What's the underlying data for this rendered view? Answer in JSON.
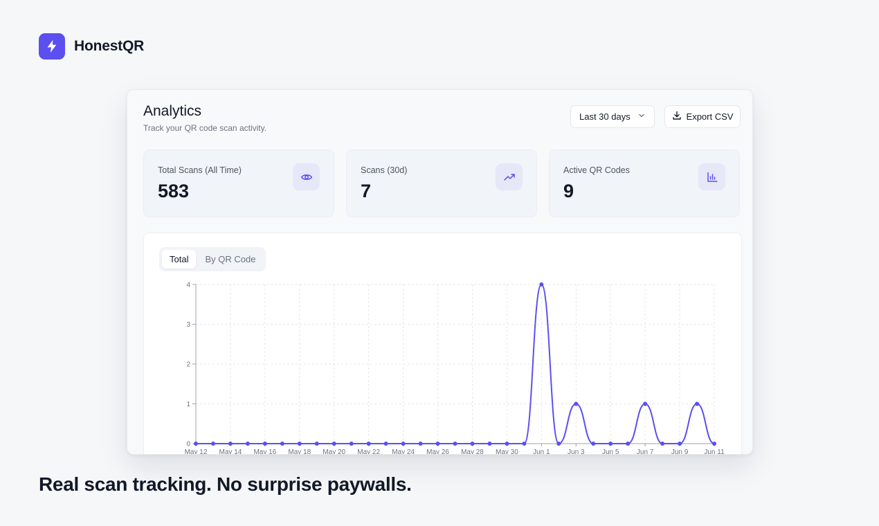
{
  "brand": {
    "name": "HonestQR",
    "logo_icon": "lightning-bolt-icon",
    "accent": "#5b4ff0"
  },
  "header": {
    "title": "Analytics",
    "subtitle": "Track your QR code scan activity.",
    "range_select": {
      "value": "Last 30 days",
      "icon": "chevron-down-icon"
    },
    "export_button": {
      "label": "Export CSV",
      "icon": "download-icon"
    }
  },
  "stats": [
    {
      "label": "Total Scans (All Time)",
      "value": "583",
      "icon": "eye-icon"
    },
    {
      "label": "Scans (30d)",
      "value": "7",
      "icon": "trending-up-icon"
    },
    {
      "label": "Active QR Codes",
      "value": "9",
      "icon": "bar-chart-icon"
    }
  ],
  "tabs": [
    {
      "label": "Total",
      "active": true
    },
    {
      "label": "By QR Code",
      "active": false
    }
  ],
  "chart_data": {
    "type": "line",
    "x": [
      "May 12",
      "May 13",
      "May 14",
      "May 15",
      "May 16",
      "May 17",
      "May 18",
      "May 19",
      "May 20",
      "May 21",
      "May 22",
      "May 23",
      "May 24",
      "May 25",
      "May 26",
      "May 27",
      "May 28",
      "May 29",
      "May 30",
      "May 31",
      "Jun 1",
      "Jun 2",
      "Jun 3",
      "Jun 4",
      "Jun 5",
      "Jun 6",
      "Jun 7",
      "Jun 8",
      "Jun 9",
      "Jun 10",
      "Jun 11"
    ],
    "x_tick_labels": [
      "May 12",
      "May 14",
      "May 16",
      "May 18",
      "May 20",
      "May 22",
      "May 24",
      "May 26",
      "May 28",
      "May 30",
      "Jun 1",
      "Jun 3",
      "Jun 5",
      "Jun 7",
      "Jun 9",
      "Jun 11"
    ],
    "values": [
      0,
      0,
      0,
      0,
      0,
      0,
      0,
      0,
      0,
      0,
      0,
      0,
      0,
      0,
      0,
      0,
      0,
      0,
      0,
      0,
      4,
      0,
      1,
      0,
      0,
      0,
      1,
      0,
      0,
      1,
      0
    ],
    "y_ticks": [
      "0",
      "1",
      "2",
      "3",
      "4"
    ],
    "ylim": [
      0,
      4
    ],
    "grid": true,
    "line_color": "#5b4ff0"
  },
  "tagline": "Real scan tracking. No surprise paywalls."
}
